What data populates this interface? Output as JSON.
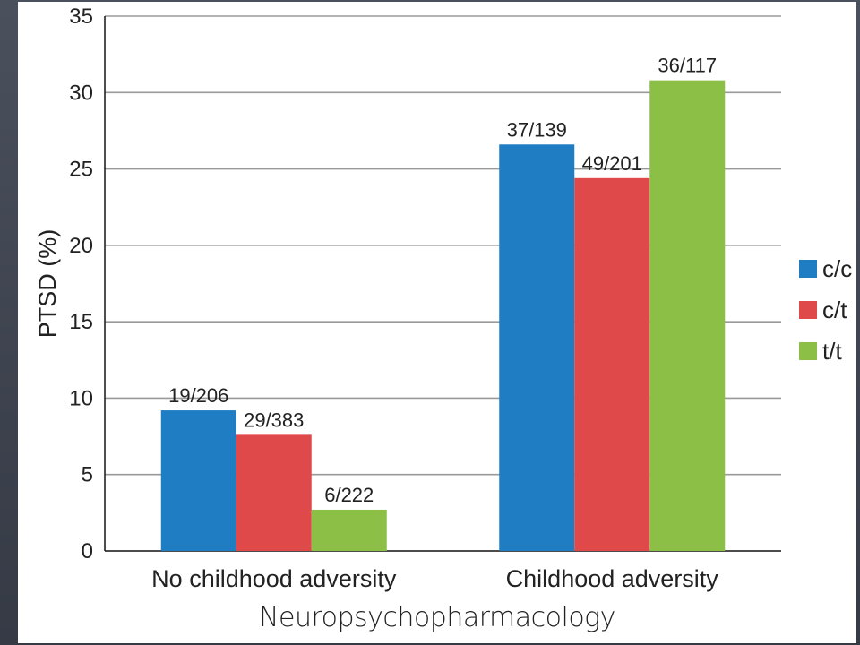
{
  "source_caption": "Neuropsychopharmacology",
  "chart_data": {
    "type": "bar",
    "title": "",
    "xlabel": "",
    "ylabel": "PTSD (%)",
    "ylim": [
      0,
      35
    ],
    "yticks": [
      0,
      5,
      10,
      15,
      20,
      25,
      30,
      35
    ],
    "grid": true,
    "legend_position": "right",
    "categories": [
      "No childhood adversity",
      "Childhood adversity"
    ],
    "series": [
      {
        "name": "c/c",
        "color": "#1f7dc4",
        "values": [
          9.2,
          26.6
        ],
        "labels": [
          "19/206",
          "37/139"
        ]
      },
      {
        "name": "c/t",
        "color": "#e0494a",
        "values": [
          7.6,
          24.4
        ],
        "labels": [
          "29/383",
          "49/201"
        ]
      },
      {
        "name": "t/t",
        "color": "#8bbf46",
        "values": [
          2.7,
          30.8
        ],
        "labels": [
          "6/222",
          "36/117"
        ]
      }
    ]
  }
}
